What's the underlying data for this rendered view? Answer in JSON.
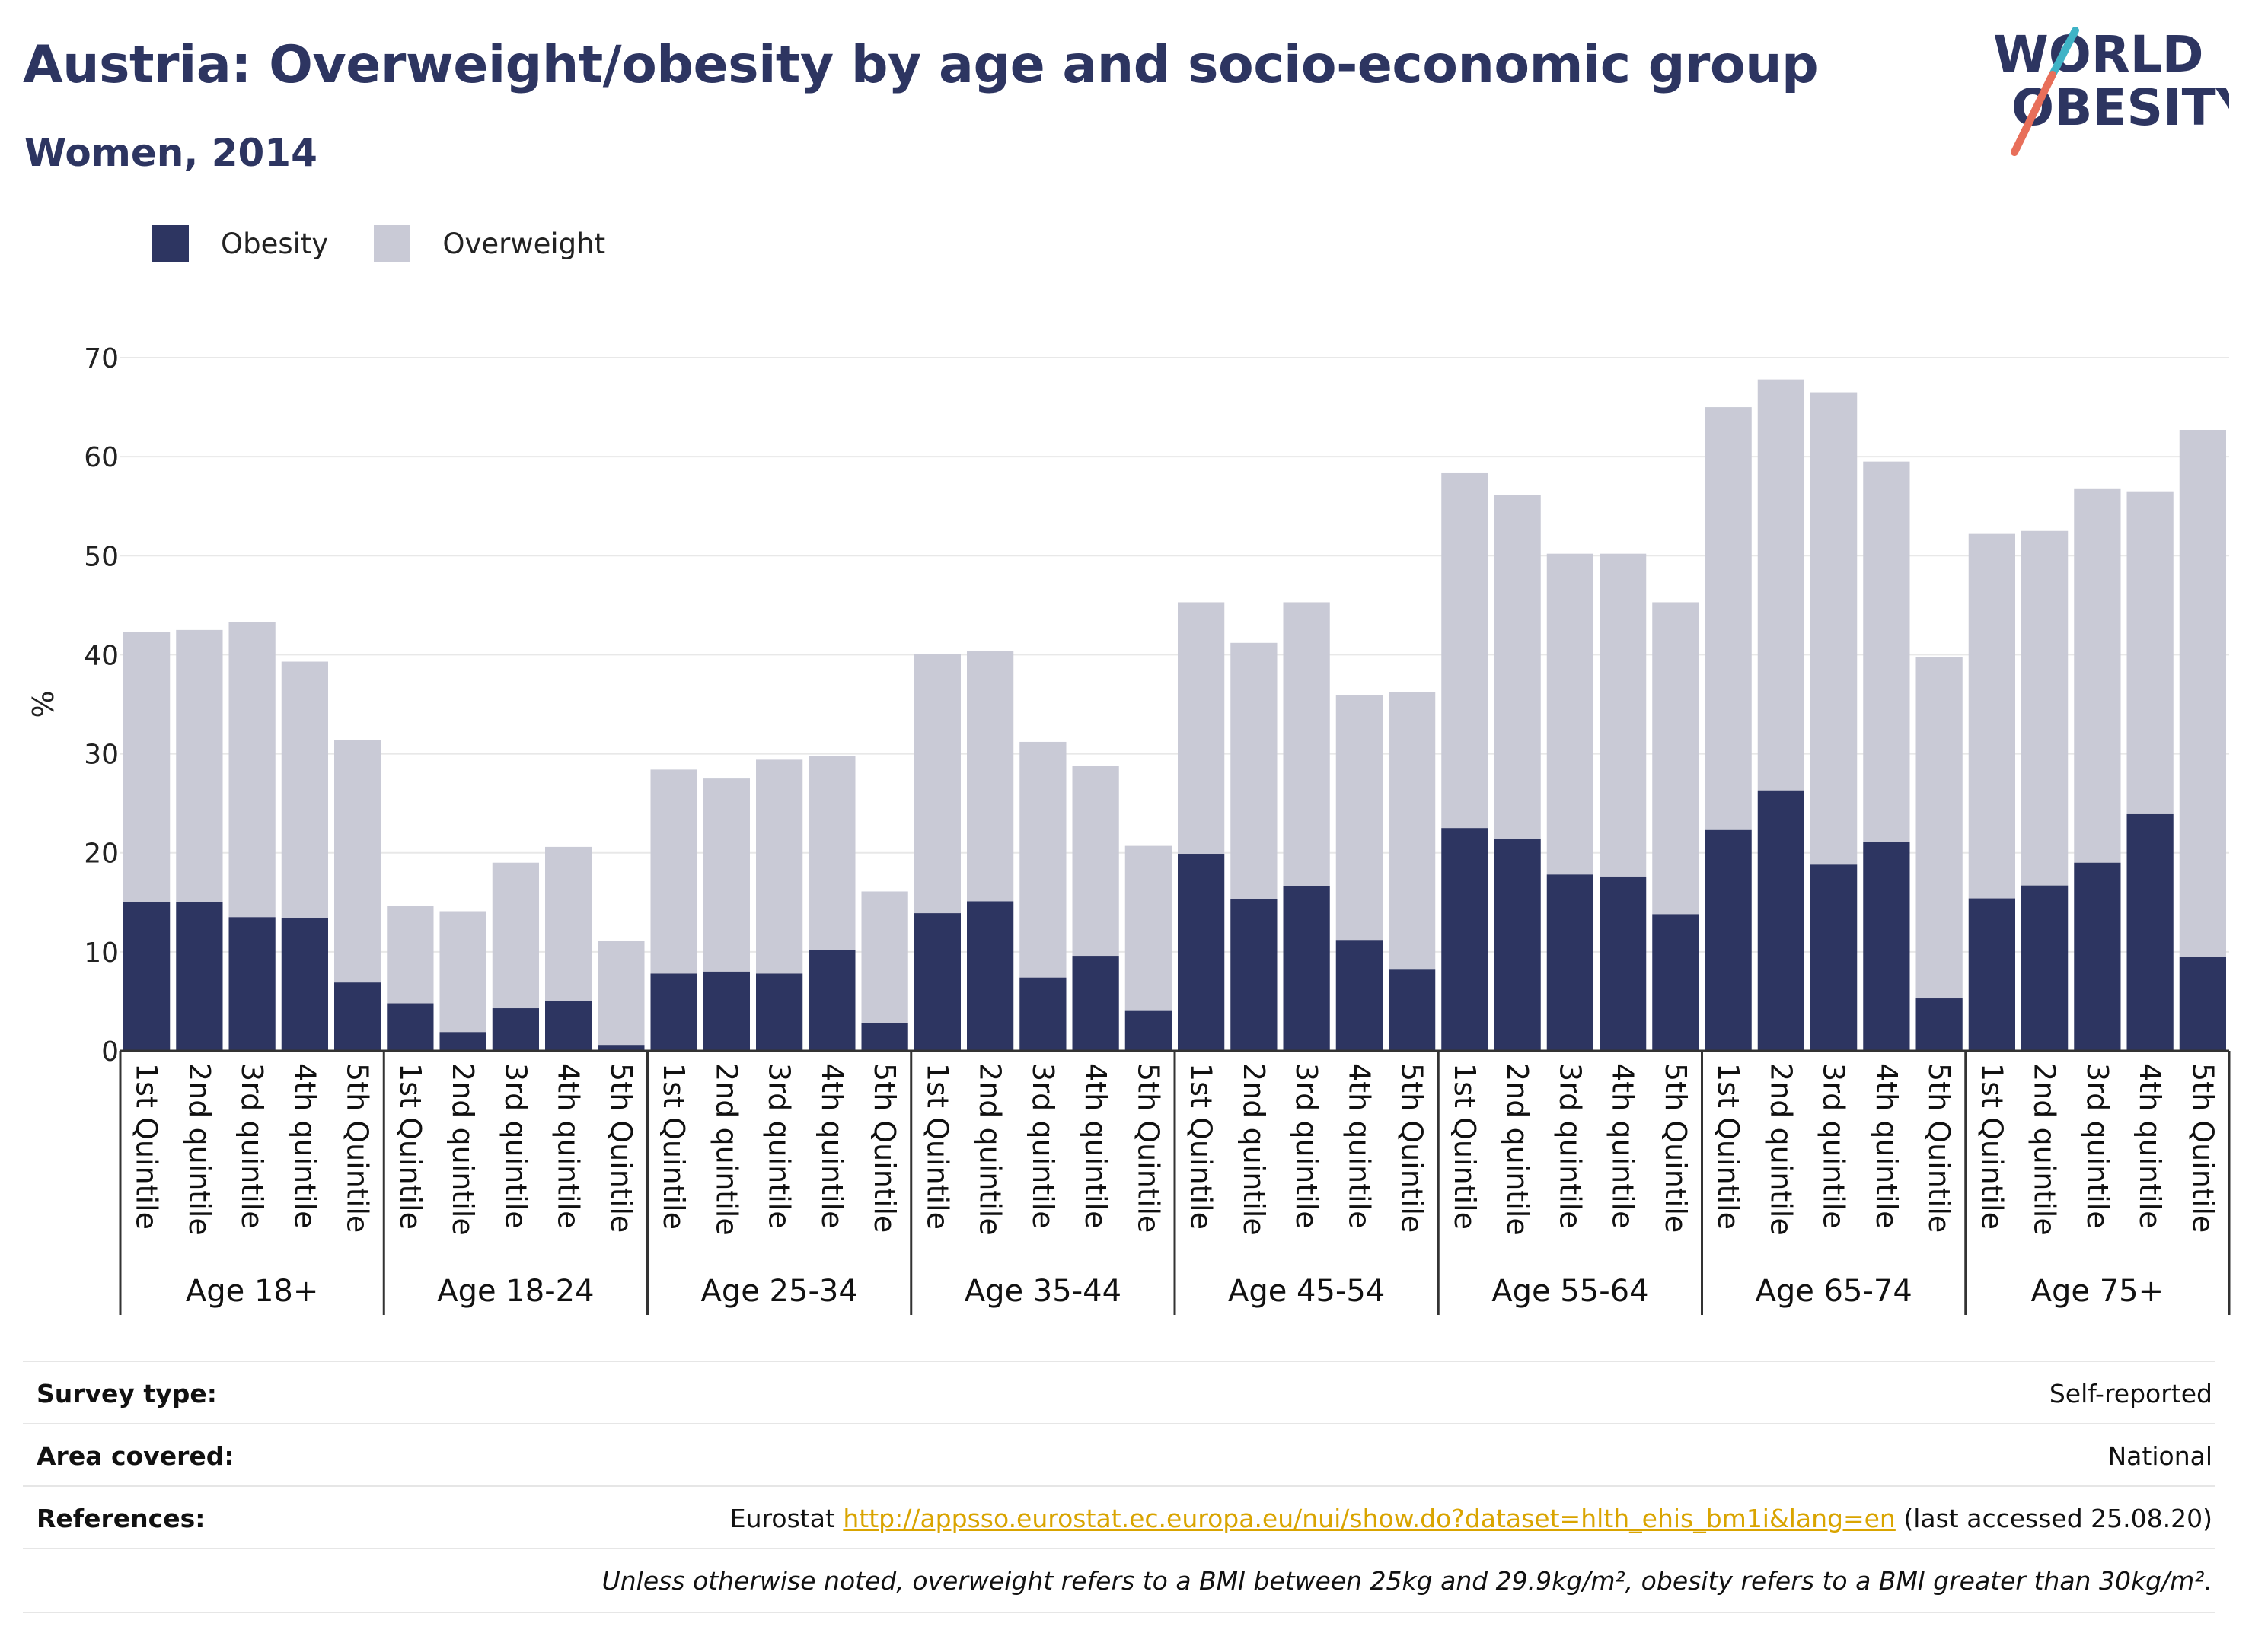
{
  "header": {
    "title": "Austria: Overweight/obesity by age and socio-economic group",
    "subtitle": "Women, 2014",
    "logo_line1": "WORLD",
    "logo_line2": "OBESITY"
  },
  "legend": [
    {
      "label": "Obesity",
      "color": "#2d3561"
    },
    {
      "label": "Overweight",
      "color": "#c9cad6"
    }
  ],
  "chart_data": {
    "type": "bar",
    "stacked": true,
    "ylabel": "%",
    "ylim": [
      0,
      70
    ],
    "yticks": [
      0,
      10,
      20,
      30,
      40,
      50,
      60,
      70
    ],
    "grid": true,
    "legend_position": "top-left",
    "groups": [
      {
        "label": "Age 18+",
        "categories": [
          "1st Quintile",
          "2nd quintile",
          "3rd quintile",
          "4th quintile",
          "5th Quintile"
        ]
      },
      {
        "label": "Age 18-24",
        "categories": [
          "1st Quintile",
          "2nd quintile",
          "3rd quintile",
          "4th quintile",
          "5th Quintile"
        ]
      },
      {
        "label": "Age 25-34",
        "categories": [
          "1st Quintile",
          "2nd quintile",
          "3rd quintile",
          "4th quintile",
          "5th Quintile"
        ]
      },
      {
        "label": "Age 35-44",
        "categories": [
          "1st Quintile",
          "2nd quintile",
          "3rd quintile",
          "4th quintile",
          "5th Quintile"
        ]
      },
      {
        "label": "Age 45-54",
        "categories": [
          "1st Quintile",
          "2nd quintile",
          "3rd quintile",
          "4th quintile",
          "5th Quintile"
        ]
      },
      {
        "label": "Age 55-64",
        "categories": [
          "1st Quintile",
          "2nd quintile",
          "3rd quintile",
          "4th quintile",
          "5th Quintile"
        ]
      },
      {
        "label": "Age 65-74",
        "categories": [
          "1st Quintile",
          "2nd quintile",
          "3rd quintile",
          "4th quintile",
          "5th Quintile"
        ]
      },
      {
        "label": "Age 75+",
        "categories": [
          "1st Quintile",
          "2nd quintile",
          "3rd quintile",
          "4th quintile",
          "5th Quintile"
        ]
      }
    ],
    "series": [
      {
        "name": "Obesity",
        "color": "#2d3561",
        "values": [
          15.0,
          15.0,
          13.5,
          13.4,
          6.9,
          4.8,
          1.9,
          4.3,
          5.0,
          0.6,
          7.8,
          8.0,
          7.8,
          10.2,
          2.8,
          13.9,
          15.1,
          7.4,
          9.6,
          4.1,
          19.9,
          15.3,
          16.6,
          11.2,
          8.2,
          22.5,
          21.4,
          17.8,
          17.6,
          13.8,
          22.3,
          26.3,
          18.8,
          21.1,
          5.3,
          15.4,
          16.7,
          19.0,
          23.9,
          9.5
        ]
      },
      {
        "name": "Overweight",
        "color": "#c9cad6",
        "values": [
          27.3,
          27.5,
          29.8,
          25.9,
          24.5,
          9.8,
          12.2,
          14.7,
          15.6,
          10.5,
          20.6,
          19.5,
          21.6,
          19.6,
          13.3,
          26.2,
          25.3,
          23.8,
          19.2,
          16.6,
          25.4,
          25.9,
          28.7,
          24.7,
          28.0,
          35.9,
          34.7,
          32.4,
          32.6,
          31.5,
          42.7,
          41.5,
          47.7,
          38.4,
          34.5,
          36.8,
          35.8,
          37.8,
          32.6,
          53.2
        ]
      }
    ]
  },
  "info": {
    "survey_type_label": "Survey type:",
    "survey_type_value": "Self-reported",
    "area_label": "Area covered:",
    "area_value": "National",
    "references_label": "References:",
    "references_prefix": "Eurostat ",
    "references_link": "http://appsso.eurostat.ec.europa.eu/nui/show.do?dataset=hlth_ehis_bm1i&lang=en",
    "references_suffix": " (last accessed 25.08.20)",
    "note": "Unless otherwise noted, overweight refers to a BMI between 25kg and 29.9kg/m², obesity refers to a BMI greater than 30kg/m²."
  }
}
